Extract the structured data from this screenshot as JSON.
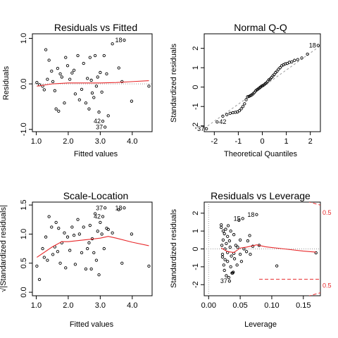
{
  "chart_data": [
    {
      "type": "scatter",
      "title": "Residuals vs Fitted",
      "xlabel": "Fitted values",
      "ylabel": "Residuals",
      "xlim": [
        0.88,
        4.62
      ],
      "ylim": [
        -1.05,
        1.1
      ],
      "xticks": [
        1.0,
        2.0,
        3.0,
        4.0
      ],
      "xtick_labels": [
        "1.0",
        "2.0",
        "3.0",
        "4.0"
      ],
      "yticks": [
        -1.0,
        0.0,
        1.0
      ],
      "ytick_labels": [
        "-1.0",
        "0.0",
        "1.0"
      ],
      "points": [
        [
          1.02,
          0.03
        ],
        [
          1.1,
          -0.02
        ],
        [
          1.2,
          -0.05
        ],
        [
          1.25,
          -0.13
        ],
        [
          1.3,
          0.75
        ],
        [
          1.35,
          0.1
        ],
        [
          1.4,
          0.52
        ],
        [
          1.48,
          0.28
        ],
        [
          1.52,
          0.05
        ],
        [
          1.58,
          -0.15
        ],
        [
          1.62,
          -0.55
        ],
        [
          1.67,
          0.34
        ],
        [
          1.7,
          -0.6
        ],
        [
          1.75,
          0.22
        ],
        [
          1.8,
          0.15
        ],
        [
          1.88,
          -0.42
        ],
        [
          1.92,
          0.58
        ],
        [
          1.98,
          0.4
        ],
        [
          2.05,
          0.1
        ],
        [
          2.12,
          0.24
        ],
        [
          2.18,
          0.3
        ],
        [
          2.22,
          -0.22
        ],
        [
          2.3,
          0.62
        ],
        [
          2.35,
          -0.35
        ],
        [
          2.42,
          -0.12
        ],
        [
          2.48,
          0.45
        ],
        [
          2.55,
          -0.42
        ],
        [
          2.6,
          0.12
        ],
        [
          2.65,
          -0.55
        ],
        [
          2.68,
          0.58
        ],
        [
          2.72,
          0.08
        ],
        [
          2.75,
          -0.2
        ],
        [
          2.8,
          -0.3
        ],
        [
          2.84,
          0.62
        ],
        [
          2.88,
          -0.05
        ],
        [
          2.92,
          0.15
        ],
        [
          2.96,
          -0.62
        ],
        [
          3.0,
          0.25
        ],
        [
          3.05,
          -0.18
        ],
        [
          3.08,
          -0.82
        ],
        [
          3.12,
          0.62
        ],
        [
          3.15,
          -0.95
        ],
        [
          3.2,
          0.22
        ],
        [
          3.25,
          -0.7
        ],
        [
          3.38,
          0.88
        ],
        [
          3.58,
          0.35
        ],
        [
          3.68,
          0.05
        ],
        [
          3.75,
          0.96
        ],
        [
          3.98,
          -0.38
        ],
        [
          4.52,
          -0.05
        ]
      ],
      "labels": [
        {
          "text": "18",
          "x": 3.75,
          "y": 0.96
        },
        {
          "text": "42",
          "x": 3.08,
          "y": -0.82
        },
        {
          "text": "37",
          "x": 3.15,
          "y": -0.95
        }
      ],
      "smoother": [
        [
          1.02,
          -0.05
        ],
        [
          1.5,
          0.0
        ],
        [
          2.0,
          0.02
        ],
        [
          2.5,
          0.02
        ],
        [
          3.0,
          0.02
        ],
        [
          3.5,
          0.03
        ],
        [
          4.0,
          0.05
        ],
        [
          4.52,
          0.07
        ]
      ],
      "reference": [
        {
          "type": "h",
          "value": 0,
          "style": "dotted"
        }
      ]
    },
    {
      "type": "scatter",
      "title": "Normal Q-Q",
      "xlabel": "Theoretical Quantiles",
      "ylabel": "Standardized residuals",
      "xlim": [
        -2.42,
        2.42
      ],
      "ylim": [
        -2.3,
        2.75
      ],
      "xticks": [
        -2,
        -1,
        0,
        1,
        2
      ],
      "xtick_labels": [
        "-2",
        "-1",
        "0",
        "1",
        "2"
      ],
      "yticks": [
        -2,
        -1,
        0,
        1,
        2
      ],
      "ytick_labels": [
        "-2",
        "-1",
        "0",
        "1",
        "2"
      ],
      "qq": {
        "n": 50,
        "sorted_residuals": [
          -2.15,
          -1.8,
          -1.5,
          -1.42,
          -1.35,
          -1.32,
          -1.3,
          -1.28,
          -1.22,
          -1.12,
          -1.0,
          -0.86,
          -0.65,
          -0.5,
          -0.48,
          -0.44,
          -0.4,
          -0.35,
          -0.28,
          -0.2,
          -0.14,
          -0.1,
          -0.05,
          0.0,
          0.05,
          0.08,
          0.12,
          0.18,
          0.22,
          0.3,
          0.38,
          0.42,
          0.5,
          0.58,
          0.65,
          0.75,
          0.82,
          0.92,
          1.0,
          1.1,
          1.15,
          1.2,
          1.22,
          1.28,
          1.3,
          1.38,
          1.42,
          1.5,
          1.7,
          2.15
        ]
      },
      "labels": [
        {
          "text": "37",
          "rank": 1,
          "side": "left"
        },
        {
          "text": "42",
          "rank": 2,
          "side": "right"
        },
        {
          "text": "18",
          "rank": 50,
          "side": "left"
        }
      ],
      "reference": [
        {
          "type": "qqline",
          "slope": 0.88,
          "intercept": 0.0,
          "style": "dashed"
        }
      ]
    },
    {
      "type": "scatter",
      "title": "Scale-Location",
      "xlabel": "Fitted values",
      "ylabel": "√|Standardized residuals|",
      "xlim": [
        0.88,
        4.62
      ],
      "ylim": [
        -0.06,
        1.55
      ],
      "xticks": [
        1.0,
        2.0,
        3.0,
        4.0
      ],
      "xtick_labels": [
        "1.0",
        "2.0",
        "3.0",
        "4.0"
      ],
      "yticks": [
        0.0,
        0.5,
        1.0,
        1.5
      ],
      "ytick_labels": [
        "0.0",
        "0.5",
        "1.0",
        "1.5"
      ],
      "points": [
        [
          1.02,
          0.45
        ],
        [
          1.1,
          0.22
        ],
        [
          1.2,
          0.75
        ],
        [
          1.25,
          0.6
        ],
        [
          1.3,
          0.95
        ],
        [
          1.35,
          0.55
        ],
        [
          1.4,
          1.3
        ],
        [
          1.48,
          1.12
        ],
        [
          1.52,
          0.65
        ],
        [
          1.58,
          0.78
        ],
        [
          1.62,
          1.2
        ],
        [
          1.67,
          0.7
        ],
        [
          1.7,
          1.1
        ],
        [
          1.75,
          0.5
        ],
        [
          1.8,
          0.85
        ],
        [
          1.88,
          1.02
        ],
        [
          1.92,
          0.42
        ],
        [
          1.98,
          0.95
        ],
        [
          2.05,
          0.72
        ],
        [
          2.12,
          1.12
        ],
        [
          2.18,
          0.98
        ],
        [
          2.22,
          0.48
        ],
        [
          2.3,
          1.25
        ],
        [
          2.35,
          1.0
        ],
        [
          2.42,
          0.68
        ],
        [
          2.48,
          1.12
        ],
        [
          2.55,
          0.4
        ],
        [
          2.6,
          0.75
        ],
        [
          2.65,
          0.85
        ],
        [
          2.68,
          1.15
        ],
        [
          2.72,
          0.4
        ],
        [
          2.75,
          0.92
        ],
        [
          2.8,
          0.68
        ],
        [
          2.84,
          1.35
        ],
        [
          2.88,
          0.55
        ],
        [
          2.92,
          1.05
        ],
        [
          2.96,
          0.3
        ],
        [
          3.0,
          1.2
        ],
        [
          3.05,
          1.0
        ],
        [
          3.08,
          1.3
        ],
        [
          3.12,
          0.75
        ],
        [
          3.15,
          1.45
        ],
        [
          3.2,
          1.1
        ],
        [
          3.25,
          1.08
        ],
        [
          3.38,
          1.02
        ],
        [
          3.58,
          1.42
        ],
        [
          3.68,
          0.5
        ],
        [
          3.75,
          1.45
        ],
        [
          3.98,
          1.0
        ],
        [
          4.52,
          0.45
        ]
      ],
      "labels": [
        {
          "text": "37",
          "x": 3.15,
          "y": 1.45
        },
        {
          "text": "42",
          "x": 3.08,
          "y": 1.3
        },
        {
          "text": "18",
          "x": 3.75,
          "y": 1.45
        }
      ],
      "smoother": [
        [
          1.02,
          0.6
        ],
        [
          1.5,
          0.78
        ],
        [
          1.8,
          0.87
        ],
        [
          2.0,
          0.87
        ],
        [
          2.5,
          0.9
        ],
        [
          3.0,
          0.93
        ],
        [
          3.25,
          0.96
        ],
        [
          3.5,
          0.93
        ],
        [
          4.0,
          0.86
        ],
        [
          4.52,
          0.8
        ]
      ]
    },
    {
      "type": "scatter",
      "title": "Residuals vs Leverage",
      "xlabel": "Leverage",
      "ylabel": "Standardized residuals",
      "xlim": [
        -0.007,
        0.177
      ],
      "ylim": [
        -2.62,
        2.62
      ],
      "xticks": [
        0.0,
        0.05,
        0.1,
        0.15
      ],
      "xtick_labels": [
        "0.00",
        "0.05",
        "0.10",
        "0.15"
      ],
      "yticks": [
        -2,
        -1,
        0,
        1,
        2
      ],
      "ytick_labels": [
        "-2",
        "-1",
        "0",
        "1",
        "2"
      ],
      "points": [
        [
          0.02,
          1.35
        ],
        [
          0.02,
          1.2
        ],
        [
          0.021,
          0.2
        ],
        [
          0.022,
          -0.3
        ],
        [
          0.022,
          -0.45
        ],
        [
          0.023,
          1.0
        ],
        [
          0.023,
          0.5
        ],
        [
          0.024,
          -0.9
        ],
        [
          0.025,
          -1.2
        ],
        [
          0.025,
          0.85
        ],
        [
          0.026,
          0.0
        ],
        [
          0.026,
          -0.6
        ],
        [
          0.027,
          1.1
        ],
        [
          0.028,
          -1.5
        ],
        [
          0.028,
          0.3
        ],
        [
          0.03,
          -0.2
        ],
        [
          0.03,
          0.7
        ],
        [
          0.03,
          -0.7
        ],
        [
          0.031,
          1.3
        ],
        [
          0.032,
          -1.6
        ],
        [
          0.033,
          -1.8
        ],
        [
          0.033,
          0.45
        ],
        [
          0.034,
          0.1
        ],
        [
          0.035,
          -1.0
        ],
        [
          0.035,
          1.0
        ],
        [
          0.036,
          -0.4
        ],
        [
          0.037,
          -1.35
        ],
        [
          0.038,
          -1.35
        ],
        [
          0.039,
          -1.3
        ],
        [
          0.04,
          -0.25
        ],
        [
          0.04,
          0.8
        ],
        [
          0.041,
          -0.55
        ],
        [
          0.043,
          0.2
        ],
        [
          0.045,
          -0.9
        ],
        [
          0.046,
          0.1
        ],
        [
          0.048,
          1.6
        ],
        [
          0.05,
          -0.3
        ],
        [
          0.05,
          0.5
        ],
        [
          0.052,
          -0.7
        ],
        [
          0.054,
          1.7
        ],
        [
          0.056,
          0.0
        ],
        [
          0.06,
          -0.15
        ],
        [
          0.062,
          0.45
        ],
        [
          0.065,
          0.75
        ],
        [
          0.066,
          -0.3
        ],
        [
          0.07,
          0.15
        ],
        [
          0.076,
          1.92
        ],
        [
          0.08,
          0.2
        ],
        [
          0.108,
          -0.95
        ],
        [
          0.17,
          -0.22
        ]
      ],
      "labels": [
        {
          "text": "18",
          "x": 0.076,
          "y": 1.92
        },
        {
          "text": "15",
          "x": 0.054,
          "y": 1.7
        },
        {
          "text": "37",
          "x": 0.033,
          "y": -1.8
        }
      ],
      "smoother": [
        [
          0.02,
          0.05
        ],
        [
          0.03,
          -0.15
        ],
        [
          0.04,
          -0.2
        ],
        [
          0.05,
          0.05
        ],
        [
          0.06,
          0.1
        ],
        [
          0.07,
          0.18
        ],
        [
          0.076,
          0.23
        ],
        [
          0.09,
          0.12
        ],
        [
          0.12,
          0.0
        ],
        [
          0.15,
          -0.12
        ],
        [
          0.17,
          -0.18
        ]
      ],
      "reference": [
        {
          "type": "h",
          "value": 0,
          "style": "dotted"
        },
        {
          "type": "v",
          "value": 0,
          "style": "dotted"
        }
      ],
      "cooks_distance": [
        {
          "label": "0.5",
          "level": 0.5,
          "upper": [
            [
              0.115,
              3.2
            ],
            [
              0.13,
              3.0
            ],
            [
              0.145,
              2.8
            ],
            [
              0.16,
              2.62
            ],
            [
              0.177,
              2.45
            ]
          ],
          "lower": [
            [
              0.115,
              -3.2
            ],
            [
              0.13,
              -3.0
            ],
            [
              0.145,
              -2.8
            ],
            [
              0.16,
              -2.62
            ],
            [
              0.177,
              -2.45
            ]
          ]
        },
        {
          "label": "1",
          "level": 1.0,
          "upper": [],
          "lower": [
            [
              0.08,
              -1.7
            ],
            [
              0.177,
              -1.7
            ]
          ]
        }
      ],
      "cooks_labels": [
        {
          "text": "0.5",
          "y": 2.02
        },
        {
          "text": "0.5",
          "y": -2.05
        }
      ]
    }
  ]
}
